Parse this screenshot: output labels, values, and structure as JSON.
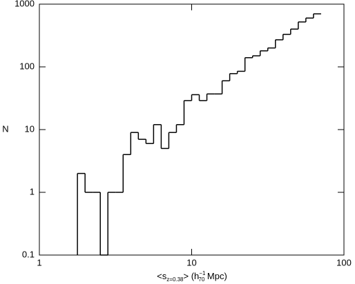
{
  "chart_data": {
    "type": "histogram",
    "xscale": "log",
    "yscale": "log",
    "color": "#000000",
    "x_label": {
      "main": "<s",
      "sub": "z=0.38",
      "mid": "> (h",
      "sub2": "70",
      "sup": "−1",
      "end": " Mpc)"
    },
    "y_label": "N",
    "bins": [
      1.778,
      1.995,
      2.239,
      2.512,
      2.818,
      3.162,
      3.548,
      3.981,
      4.467,
      5.012,
      5.623,
      6.31,
      7.079,
      7.943,
      8.913,
      10.0,
      11.22,
      12.59,
      14.13,
      15.85,
      17.78,
      19.95,
      22.39,
      25.12,
      28.18,
      31.62,
      35.48,
      39.81,
      44.67,
      50.12,
      56.23,
      63.1,
      70.79
    ],
    "values": [
      2,
      1,
      1,
      0,
      1,
      1,
      4,
      9,
      7,
      6,
      12,
      5,
      9,
      12,
      29,
      36,
      29,
      37,
      37,
      60,
      78,
      85,
      140,
      150,
      180,
      200,
      270,
      330,
      400,
      520,
      600,
      700
    ],
    "xlim": [
      1,
      100
    ],
    "xticks": [
      1,
      10,
      100
    ],
    "ylim": [
      0.1,
      1000
    ],
    "yticks": [
      0.1,
      1,
      10,
      100,
      1000
    ]
  }
}
